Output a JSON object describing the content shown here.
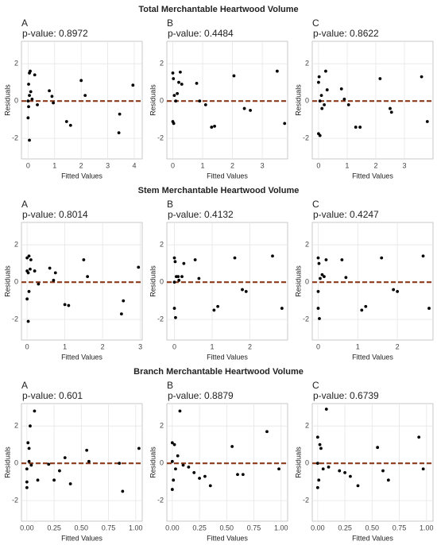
{
  "chart_data": [
    {
      "type": "scatter",
      "title": "Total Merchantable Heartwood Volume",
      "panel": "A",
      "annotation": "p-value: 0.8972",
      "x_label": "Fitted Values",
      "y_label": "Residuals",
      "color": "#000000",
      "hline": 0,
      "hline_color": "#8b3a1a",
      "grid": true,
      "x": [
        0.0,
        0.02,
        0.05,
        0.08,
        0.05,
        0.1,
        0.05,
        0.15,
        0.25,
        0.35,
        0.8,
        0.9,
        0.95,
        2.0,
        2.15,
        1.45,
        1.6,
        3.45,
        3.42,
        3.95,
        0.0,
        0.02
      ],
      "y": [
        -0.9,
        0.9,
        1.5,
        1.6,
        0.3,
        0.5,
        -2.1,
        0.1,
        1.4,
        -0.2,
        0.55,
        0.25,
        -0.1,
        1.1,
        0.3,
        -1.1,
        -1.3,
        -0.7,
        -1.7,
        0.85,
        0.0,
        -0.3
      ],
      "xlim": [
        -0.25,
        4.3
      ],
      "ylim": [
        -3.1,
        3.2
      ],
      "xticks": [
        0,
        1,
        2,
        3,
        4
      ],
      "yticks": [
        -2,
        0,
        2
      ]
    },
    {
      "type": "scatter",
      "panel": "B",
      "annotation": "p-value: 0.4484",
      "x_label": "Fitted Values",
      "y_label": "Residuals",
      "color": "#000000",
      "hline": 0,
      "hline_color": "#8b3a1a",
      "grid": true,
      "x": [
        0.0,
        0.02,
        0.0,
        0.03,
        0.05,
        0.1,
        0.15,
        0.2,
        0.25,
        0.3,
        0.8,
        0.9,
        1.1,
        1.3,
        1.4,
        2.05,
        2.4,
        2.6,
        3.5,
        3.75
      ],
      "y": [
        1.5,
        1.2,
        -1.1,
        -1.2,
        0.3,
        0.0,
        0.4,
        1.0,
        1.55,
        0.9,
        0.95,
        0.0,
        -0.2,
        -1.4,
        -1.35,
        1.35,
        -0.4,
        -0.5,
        1.6,
        -1.2
      ],
      "xlim": [
        -0.2,
        3.85
      ],
      "ylim": [
        -3.1,
        3.2
      ],
      "xticks": [
        0,
        1,
        2,
        3
      ],
      "yticks": [
        -2,
        0,
        2
      ]
    },
    {
      "type": "scatter",
      "panel": "C",
      "annotation": "p-value: 0.8622",
      "x_label": "Fitted Values",
      "y_label": "Residuals",
      "color": "#000000",
      "hline": 0,
      "hline_color": "#8b3a1a",
      "grid": true,
      "x": [
        0.0,
        0.02,
        0.0,
        0.05,
        0.1,
        0.12,
        0.2,
        0.25,
        0.3,
        0.8,
        0.9,
        1.05,
        1.3,
        1.45,
        2.15,
        2.5,
        2.55,
        3.6,
        3.8,
        0.05
      ],
      "y": [
        1.0,
        1.3,
        -1.75,
        -1.85,
        0.3,
        -0.4,
        -0.2,
        1.6,
        0.6,
        0.65,
        0.1,
        -0.2,
        -1.4,
        -1.4,
        1.2,
        -0.4,
        -0.6,
        1.3,
        -1.1,
        0.0
      ],
      "xlim": [
        -0.22,
        4.0
      ],
      "ylim": [
        -3.1,
        3.2
      ],
      "xticks": [
        0,
        1,
        2,
        3
      ],
      "yticks": [
        -2,
        0,
        2
      ]
    },
    {
      "type": "scatter",
      "title": "Stem Merchantable Heartwood Volume",
      "panel": "A",
      "annotation": "p-value: 0.8014",
      "x_label": "Fitted Values",
      "y_label": "Residuals",
      "color": "#000000",
      "hline": 0,
      "hline_color": "#8b3a1a",
      "grid": true,
      "x": [
        0.0,
        0.05,
        0.1,
        0.0,
        0.03,
        0.08,
        0.0,
        0.03,
        0.05,
        0.2,
        0.3,
        0.6,
        0.7,
        0.75,
        1.0,
        1.1,
        1.5,
        1.6,
        2.55,
        2.5,
        2.95
      ],
      "y": [
        1.3,
        1.4,
        1.2,
        0.6,
        0.5,
        0.7,
        -0.9,
        -2.1,
        -0.5,
        0.6,
        -0.1,
        0.75,
        0.1,
        0.5,
        -1.2,
        -1.25,
        1.2,
        0.3,
        -1.0,
        -1.7,
        0.8
      ],
      "xlim": [
        -0.15,
        3.05
      ],
      "ylim": [
        -3.1,
        3.2
      ],
      "xticks": [
        0,
        1,
        2,
        3
      ],
      "yticks": [
        -2,
        0,
        2
      ]
    },
    {
      "type": "scatter",
      "panel": "B",
      "annotation": "p-value: 0.4132",
      "x_label": "Fitted Values",
      "y_label": "Residuals",
      "color": "#000000",
      "hline": 0,
      "hline_color": "#8b3a1a",
      "grid": true,
      "x": [
        0.0,
        0.02,
        0.0,
        0.03,
        0.05,
        0.1,
        0.12,
        0.2,
        0.25,
        0.55,
        0.65,
        1.05,
        1.15,
        1.6,
        1.8,
        1.9,
        2.6,
        2.85,
        0.0
      ],
      "y": [
        1.3,
        1.1,
        -1.4,
        -1.9,
        0.3,
        0.3,
        0.1,
        0.3,
        1.0,
        1.2,
        0.2,
        -1.5,
        -1.3,
        1.3,
        -0.4,
        -0.5,
        1.4,
        -1.4,
        0.0
      ],
      "xlim": [
        -0.2,
        3.0
      ],
      "ylim": [
        -3.1,
        3.2
      ],
      "xticks": [
        0,
        1,
        2
      ],
      "yticks": [
        -2,
        0,
        2
      ]
    },
    {
      "type": "scatter",
      "panel": "C",
      "annotation": "p-value: 0.4247",
      "x_label": "Fitted Values",
      "y_label": "Residuals",
      "color": "#000000",
      "hline": 0,
      "hline_color": "#8b3a1a",
      "grid": true,
      "x": [
        0.0,
        0.02,
        0.0,
        0.03,
        0.05,
        0.1,
        0.15,
        0.2,
        0.6,
        0.7,
        1.1,
        1.2,
        1.6,
        1.9,
        2.0,
        2.65,
        2.8,
        0.0
      ],
      "y": [
        1.3,
        1.0,
        -1.4,
        -1.95,
        0.2,
        0.4,
        0.3,
        1.2,
        1.2,
        0.25,
        -1.5,
        -1.3,
        1.3,
        -0.4,
        -0.5,
        1.4,
        -1.4,
        -0.5
      ],
      "xlim": [
        -0.15,
        2.9
      ],
      "ylim": [
        -3.1,
        3.2
      ],
      "xticks": [
        0,
        1,
        2
      ],
      "yticks": [
        -2,
        0,
        2
      ]
    },
    {
      "type": "scatter",
      "title": "Branch Merchantable Heartwood Volume",
      "panel": "A",
      "annotation": "p-value: 0.601",
      "x_label": "Fitted Values",
      "y_label": "Residuals",
      "color": "#000000",
      "hline": 0,
      "hline_color": "#8b3a1a",
      "grid": true,
      "x": [
        0.0,
        0.01,
        0.02,
        0.03,
        0.0,
        0.02,
        0.04,
        0.07,
        0.1,
        0.2,
        0.25,
        0.3,
        0.35,
        0.4,
        0.55,
        0.57,
        0.85,
        0.88,
        1.03,
        0.0
      ],
      "y": [
        -1.3,
        1.1,
        0.8,
        2.0,
        -0.3,
        0.1,
        -0.1,
        2.8,
        -0.9,
        -0.05,
        -0.9,
        -0.4,
        0.3,
        -1.1,
        0.7,
        0.1,
        0.0,
        -1.5,
        0.8,
        -1.0
      ],
      "xlim": [
        -0.05,
        1.06
      ],
      "ylim": [
        -3.1,
        3.2
      ],
      "xticks": [
        {
          "value": 0,
          "label": "0.00"
        },
        0.25,
        {
          "value": 0.5,
          "label": "0.50"
        },
        0.75,
        {
          "value": 1,
          "label": "1.00"
        }
      ],
      "yticks": [
        -2,
        0,
        2
      ]
    },
    {
      "type": "scatter",
      "panel": "B",
      "annotation": "p-value: 0.8879",
      "x_label": "Fitted Values",
      "y_label": "Residuals",
      "color": "#000000",
      "hline": 0,
      "hline_color": "#8b3a1a",
      "grid": true,
      "x": [
        0.0,
        0.02,
        0.0,
        0.01,
        0.03,
        0.05,
        0.07,
        0.1,
        0.15,
        0.2,
        0.25,
        0.3,
        0.35,
        0.55,
        0.6,
        0.65,
        0.87,
        0.98,
        0.0
      ],
      "y": [
        1.1,
        1.0,
        -1.4,
        -0.9,
        -0.3,
        0.4,
        2.8,
        -0.1,
        -0.2,
        -0.5,
        -0.8,
        -0.7,
        -1.2,
        0.9,
        -0.6,
        -0.6,
        1.7,
        -0.3,
        0.1
      ],
      "xlim": [
        -0.05,
        1.06
      ],
      "ylim": [
        -3.1,
        3.2
      ],
      "xticks": [
        {
          "value": 0,
          "label": "0.00"
        },
        0.25,
        {
          "value": 0.5,
          "label": "0.50"
        },
        0.75,
        {
          "value": 1,
          "label": "1.00"
        }
      ],
      "yticks": [
        -2,
        0,
        2
      ]
    },
    {
      "type": "scatter",
      "panel": "C",
      "annotation": "p-value: 0.6739",
      "x_label": "Fitted Values",
      "y_label": "Residuals",
      "color": "#000000",
      "hline": 0,
      "hline_color": "#8b3a1a",
      "grid": true,
      "x": [
        0.0,
        0.02,
        0.0,
        0.01,
        0.03,
        0.05,
        0.08,
        0.1,
        0.2,
        0.25,
        0.3,
        0.37,
        0.55,
        0.6,
        0.65,
        0.93,
        0.97,
        0.0
      ],
      "y": [
        1.4,
        1.0,
        -1.3,
        -0.9,
        0.8,
        -0.3,
        2.9,
        -0.2,
        -0.4,
        -0.5,
        -0.7,
        -1.2,
        0.85,
        -0.4,
        -0.9,
        1.4,
        -0.3,
        0.0
      ],
      "xlim": [
        -0.05,
        1.06
      ],
      "ylim": [
        -3.1,
        3.2
      ],
      "xticks": [
        {
          "value": 0,
          "label": "0.00"
        },
        0.25,
        {
          "value": 0.5,
          "label": "0.50"
        },
        0.75,
        {
          "value": 1,
          "label": "1.00"
        }
      ],
      "yticks": [
        -2,
        0,
        2
      ]
    }
  ]
}
